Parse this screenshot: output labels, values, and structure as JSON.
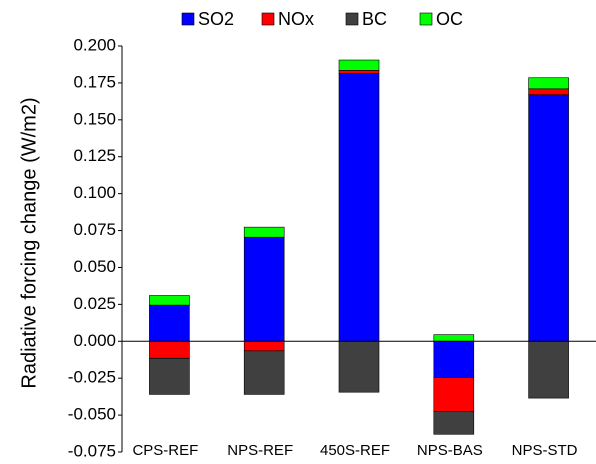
{
  "chart_data": {
    "type": "stacked-bar",
    "y_label": "Radiative forcing change (W/m2)",
    "categories": [
      "CPS-REF",
      "NPS-REF",
      "450S-REF",
      "NPS-BAS",
      "NPS-STD"
    ],
    "series": [
      {
        "name": "SO2",
        "color": "#0000ff",
        "values": [
          0.0245,
          0.0705,
          0.1815,
          -0.0245,
          0.167
        ]
      },
      {
        "name": "NOx",
        "color": "#ff0000",
        "values": [
          -0.0115,
          -0.0065,
          0.002,
          -0.023,
          0.004
        ]
      },
      {
        "name": "BC",
        "color": "#404040",
        "values": [
          -0.0245,
          -0.0295,
          -0.0345,
          -0.0155,
          -0.0385
        ]
      },
      {
        "name": "OC",
        "color": "#00ff00",
        "values": [
          0.0065,
          0.0068,
          0.007,
          0.0045,
          0.0075
        ]
      }
    ],
    "ylim": [
      -0.075,
      0.2
    ],
    "yticks": [
      {
        "value": -0.075,
        "label": "-0.075"
      },
      {
        "value": -0.05,
        "label": "-0.050"
      },
      {
        "value": -0.025,
        "label": "-0.025"
      },
      {
        "value": 0,
        "label": "0.000"
      },
      {
        "value": 0.025,
        "label": "0.025"
      },
      {
        "value": 0.05,
        "label": "0.050"
      },
      {
        "value": 0.075,
        "label": "0.075"
      },
      {
        "value": 0.1,
        "label": "0.100"
      },
      {
        "value": 0.125,
        "label": "0.125"
      },
      {
        "value": 0.15,
        "label": "0.150"
      },
      {
        "value": 0.175,
        "label": "0.175"
      },
      {
        "value": 0.2,
        "label": "0.200"
      }
    ],
    "legend": "top"
  }
}
